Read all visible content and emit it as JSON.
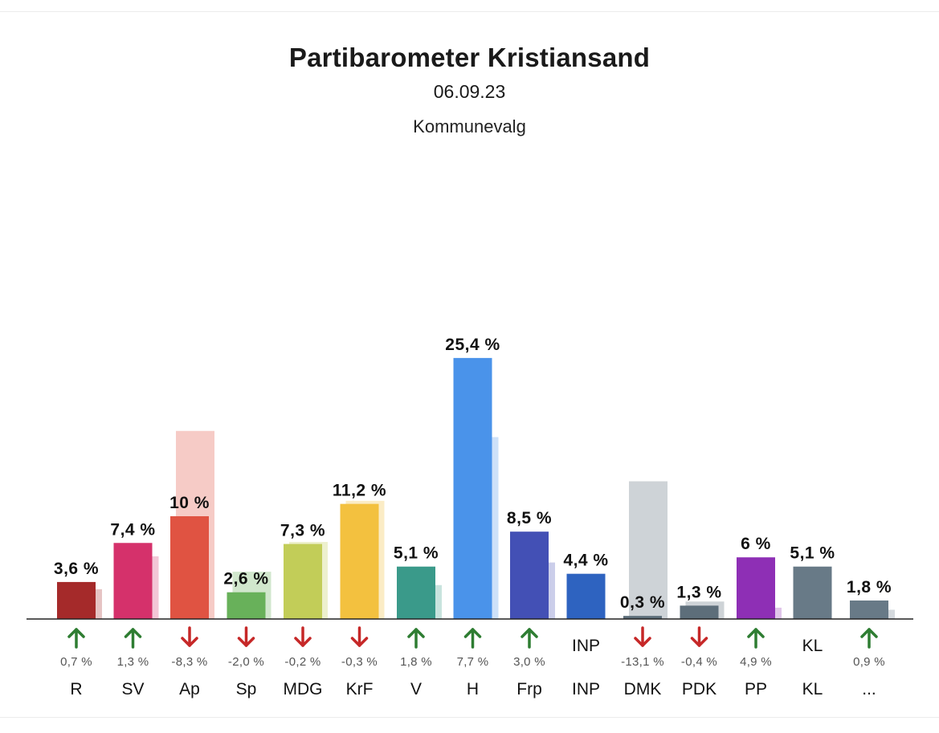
{
  "header": {
    "title": "Partibarometer Kristiansand",
    "date": "06.09.23",
    "subtitle": "Kommunevalg"
  },
  "chart_data": {
    "type": "bar",
    "title": "Partibarometer Kristiansand",
    "subtitle": "Kommunevalg",
    "categories": [
      "R",
      "SV",
      "Ap",
      "Sp",
      "MDG",
      "KrF",
      "V",
      "H",
      "Frp",
      "INP",
      "DMK",
      "PDK",
      "PP",
      "KL",
      "..."
    ],
    "series": [
      {
        "values": [
          3.6,
          7.4,
          10,
          2.6,
          7.3,
          11.2,
          5.1,
          25.4,
          8.5,
          4.4,
          0.3,
          1.3,
          6,
          5.1,
          1.8
        ],
        "value_labels": [
          "3,6 %",
          "7,4 %",
          "10 %",
          "2,6 %",
          "7,3 %",
          "11,2 %",
          "5,1 %",
          "25,4 %",
          "8,5 %",
          "4,4 %",
          "0,3 %",
          "1,3 %",
          "6 %",
          "5,1 %",
          "1,8 %"
        ]
      },
      {
        "values": [
          2.9,
          6.1,
          18.3,
          4.6,
          7.5,
          11.5,
          3.3,
          17.7,
          5.5,
          null,
          13.4,
          1.7,
          1.1,
          null,
          0.9
        ]
      }
    ],
    "change": {
      "values": [
        0.7,
        1.3,
        -8.3,
        -2.0,
        -0.2,
        -0.3,
        1.8,
        7.7,
        3.0,
        null,
        -13.1,
        -0.4,
        4.9,
        null,
        0.9
      ],
      "labels": [
        "0,7 %",
        "1,3 %",
        "-8,3 %",
        "-2,0 %",
        "-0,2 %",
        "-0,3 %",
        "1,8 %",
        "7,7 %",
        "3,0 %",
        "",
        "-13,1 %",
        "-0,4 %",
        "4,9 %",
        "",
        "0,9 %"
      ]
    },
    "new_party_labels": [
      "",
      "",
      "",
      "",
      "",
      "",
      "",
      "",
      "",
      "INP",
      "",
      "",
      "",
      "KL",
      ""
    ],
    "colors": [
      "#a52a2a",
      "#d5316b",
      "#e05342",
      "#68b15a",
      "#c2cd58",
      "#f3c13f",
      "#3a9a8a",
      "#4a93ea",
      "#4350b5",
      "#2e63c0",
      "#5d6e7a",
      "#5d6e7a",
      "#8e2fb5",
      "#687a87",
      "#687a87"
    ],
    "arrow_colors": {
      "up": "#2e7d32",
      "down": "#c62828"
    },
    "ylim": [
      0,
      27
    ],
    "grid": false,
    "legend": "none"
  }
}
